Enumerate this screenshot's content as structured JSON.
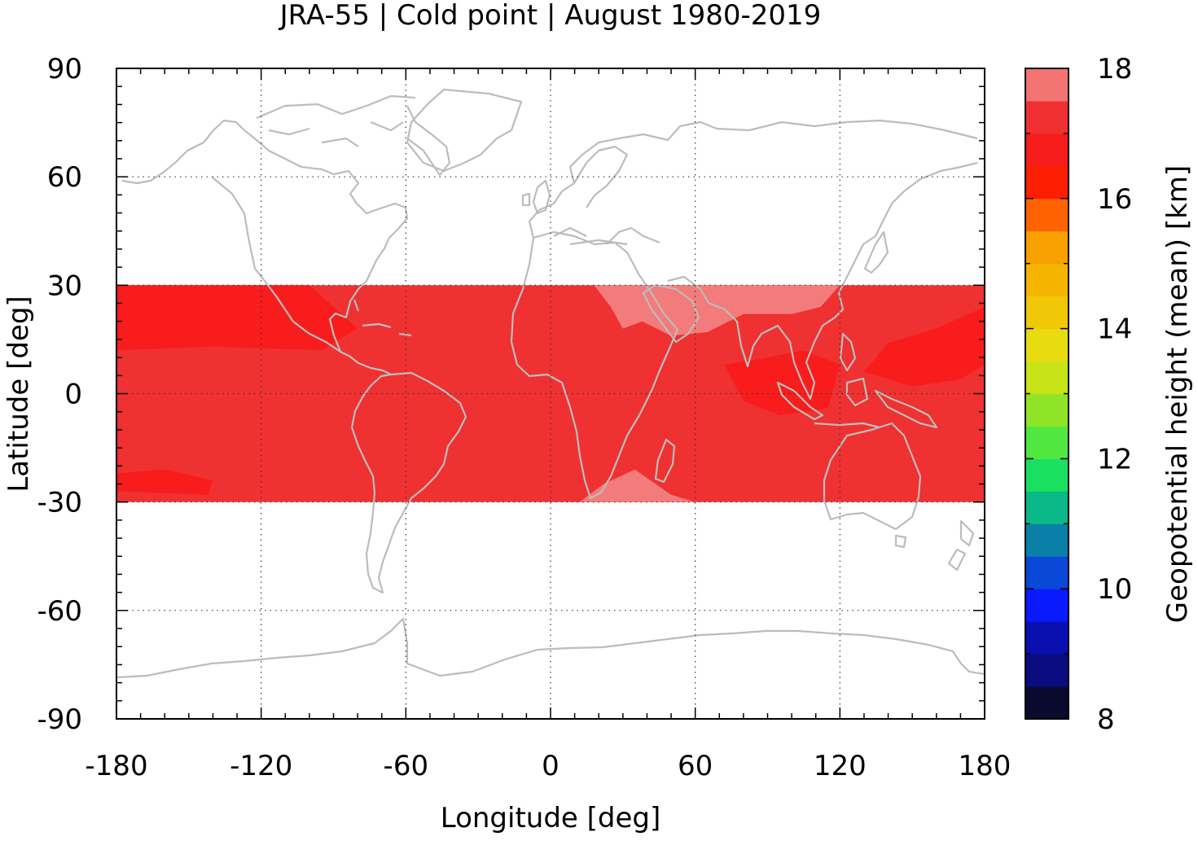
{
  "chart_data": {
    "type": "heatmap",
    "title": "JRA-55 | Cold point | August 1980-2019",
    "xlabel": "Longitude [deg]",
    "ylabel": "Latitude [deg]",
    "xlim": [
      -180,
      180
    ],
    "ylim": [
      -90,
      90
    ],
    "xticks": [
      "-180",
      "-120",
      "-60",
      "0",
      "60",
      "120",
      "180"
    ],
    "yticks": [
      "90",
      "60",
      "30",
      "0",
      "-30",
      "-60",
      "-90"
    ],
    "grid": true,
    "data_lat_range": [
      -30,
      30
    ],
    "colorbar": {
      "label": "Geopotential height (mean) [km]",
      "range": [
        8,
        18
      ],
      "step": 0.5,
      "ticks": [
        "18",
        "16",
        "14",
        "12",
        "10",
        "8"
      ],
      "colors": [
        "#0a0a2e",
        "#0a0c80",
        "#0a10b0",
        "#0a1aff",
        "#0a48d8",
        "#0a80a8",
        "#0ab888",
        "#1ae060",
        "#50e840",
        "#90e428",
        "#c8e418",
        "#e8dc10",
        "#f0c808",
        "#f4b400",
        "#f8a000",
        "#ff6200",
        "#fc1e00",
        "#f71c1c",
        "#f03030",
        "#f47474",
        "#fcc8c8"
      ]
    },
    "field_colors": {
      "background": "#ef3131",
      "high": "#f47b7b",
      "low": "#f91c1c",
      "coast": "#bcbcbc"
    },
    "regions": [
      {
        "level": "low",
        "value": 16.25,
        "points": [
          [
            -180,
            30
          ],
          [
            -100,
            30
          ],
          [
            -80,
            18
          ],
          [
            -95,
            12
          ],
          [
            -140,
            13
          ],
          [
            -180,
            12
          ]
        ]
      },
      {
        "level": "low",
        "value": 16.25,
        "points": [
          [
            -180,
            -22
          ],
          [
            -160,
            -21
          ],
          [
            -140,
            -24
          ],
          [
            -142,
            -28
          ],
          [
            -180,
            -27
          ]
        ]
      },
      {
        "level": "low",
        "value": 16.25,
        "points": [
          [
            72,
            8
          ],
          [
            90,
            10
          ],
          [
            105,
            12
          ],
          [
            120,
            8
          ],
          [
            115,
            -4
          ],
          [
            95,
            -6
          ],
          [
            80,
            -2
          ]
        ]
      },
      {
        "level": "low",
        "value": 16.25,
        "points": [
          [
            130,
            6
          ],
          [
            150,
            2
          ],
          [
            170,
            4
          ],
          [
            180,
            8
          ],
          [
            180,
            24
          ],
          [
            160,
            18
          ],
          [
            140,
            14
          ]
        ]
      },
      {
        "level": "high",
        "value": 17.25,
        "points": [
          [
            18,
            30
          ],
          [
            120,
            30
          ],
          [
            112,
            24
          ],
          [
            100,
            22
          ],
          [
            80,
            22
          ],
          [
            65,
            17
          ],
          [
            50,
            16
          ],
          [
            38,
            20
          ],
          [
            30,
            18
          ],
          [
            25,
            24
          ]
        ]
      },
      {
        "level": "high",
        "value": 17.25,
        "points": [
          [
            12,
            -30
          ],
          [
            60,
            -30
          ],
          [
            50,
            -28
          ],
          [
            35,
            -21
          ],
          [
            22,
            -25
          ]
        ]
      }
    ],
    "coastlines_drawn": true
  }
}
